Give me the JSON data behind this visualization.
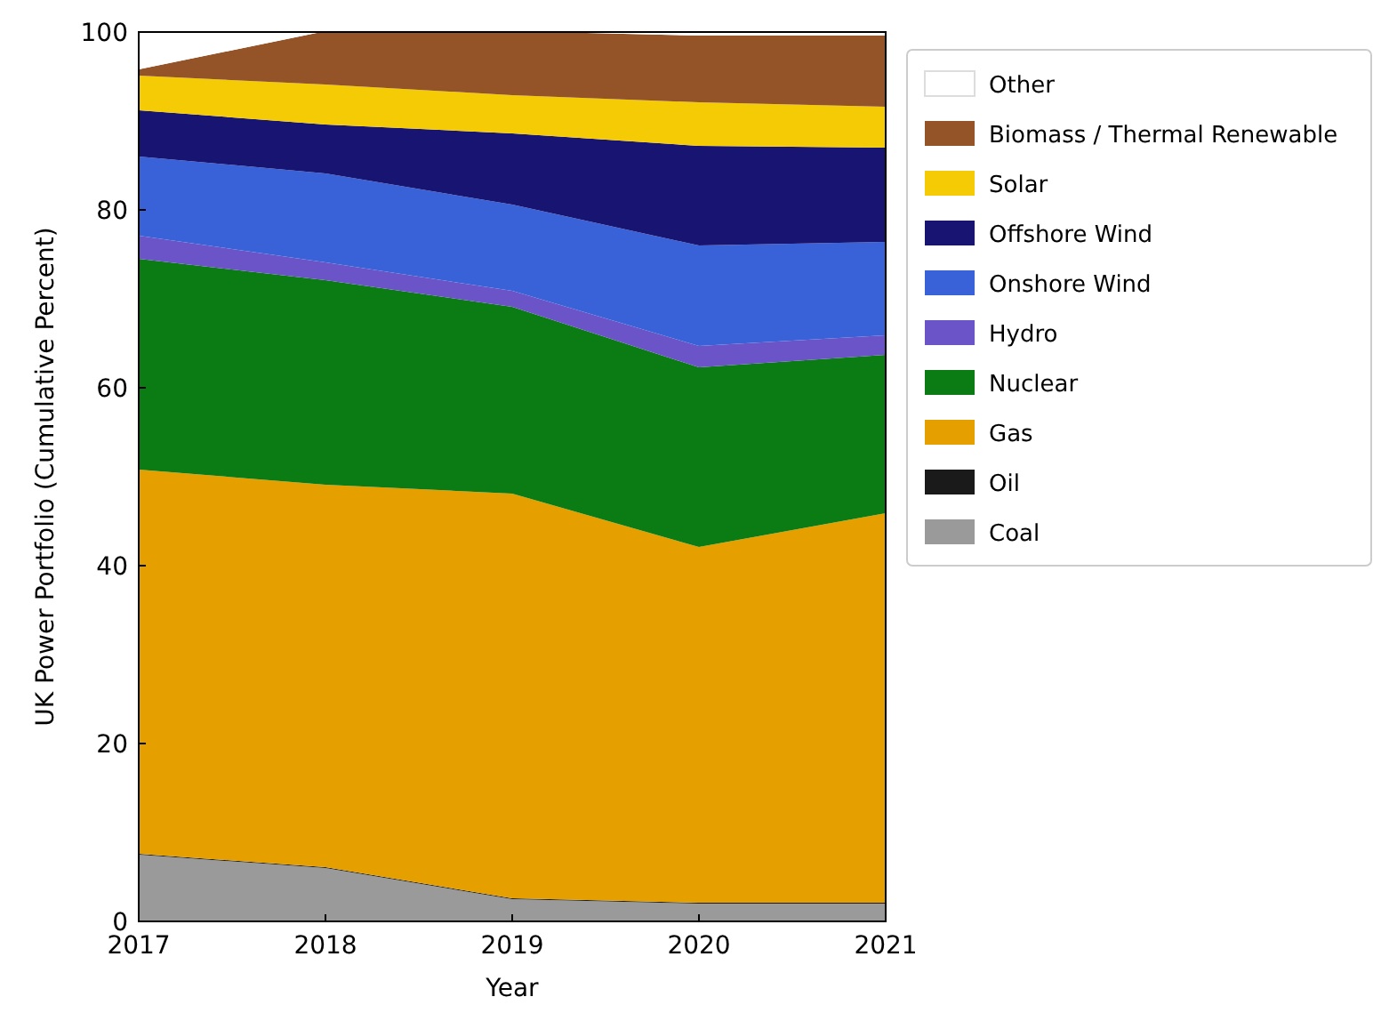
{
  "chart_data": {
    "type": "area",
    "stacked": true,
    "xlabel": "Year",
    "ylabel": "UK Power Portfolio (Cumulative Percent)",
    "x": [
      2017,
      2018,
      2019,
      2020,
      2021
    ],
    "xlim": [
      2017,
      2021
    ],
    "xticks": [
      2017,
      2018,
      2019,
      2020,
      2021
    ],
    "ylim": [
      0,
      100
    ],
    "yticks": [
      0,
      20,
      40,
      60,
      80,
      100
    ],
    "legend": "right",
    "grid": false,
    "series": [
      {
        "name": "Coal",
        "color": "#9a9a9a",
        "values": [
          7.5,
          6,
          2.5,
          2,
          2
        ]
      },
      {
        "name": "Oil",
        "color": "#1a1a1a",
        "values": [
          0.1,
          0.1,
          0.1,
          0.1,
          0.1
        ]
      },
      {
        "name": "Gas",
        "color": "#e5a000",
        "values": [
          43.2,
          43,
          45.5,
          40,
          43.8
        ]
      },
      {
        "name": "Nuclear",
        "color": "#0b7b14",
        "values": [
          23.7,
          23,
          21,
          20.2,
          17.8
        ]
      },
      {
        "name": "Hydro",
        "color": "#6a54c8",
        "values": [
          2.6,
          2,
          1.8,
          2.4,
          2.2
        ]
      },
      {
        "name": "Onshore Wind",
        "color": "#3a62d8",
        "values": [
          8.9,
          10,
          9.7,
          11.3,
          10.5
        ]
      },
      {
        "name": "Offshore Wind",
        "color": "#181472",
        "values": [
          5.2,
          5.5,
          8,
          11.2,
          10.6
        ]
      },
      {
        "name": "Solar",
        "color": "#f5cb05",
        "values": [
          3.9,
          4.5,
          4.3,
          4.9,
          4.6
        ]
      },
      {
        "name": "Biomass / Thermal Renewable",
        "color": "#945428",
        "values": [
          0.7,
          6,
          7.2,
          7.5,
          8
        ]
      },
      {
        "name": "Other",
        "color": "#ffffff",
        "values": [
          4.3,
          0,
          0,
          0.5,
          0.5
        ]
      }
    ]
  }
}
